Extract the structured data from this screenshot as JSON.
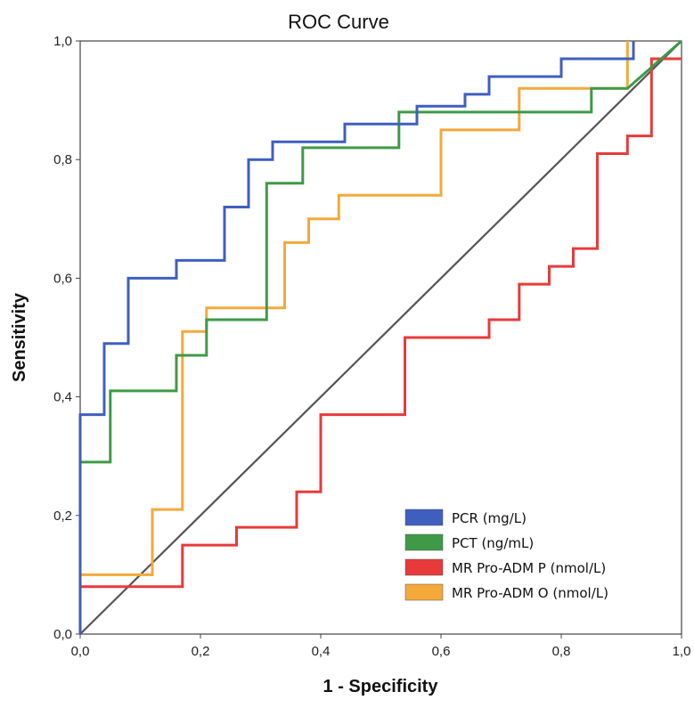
{
  "chart_data": {
    "type": "line",
    "title": "ROC Curve",
    "xlabel": "1 - Specificity",
    "ylabel": "Sensitivity",
    "xlim": [
      0,
      1
    ],
    "ylim": [
      0,
      1
    ],
    "xticks": [
      "0,0",
      "0,2",
      "0,4",
      "0,6",
      "0,8",
      "1,0"
    ],
    "yticks": [
      "0,0",
      "0,2",
      "0,4",
      "0,6",
      "0,8",
      "1,0"
    ],
    "grid": false,
    "legend_position": "bottom-right",
    "reference_line": {
      "from": [
        0,
        0
      ],
      "to": [
        1,
        1
      ],
      "color": "#555555"
    },
    "series": [
      {
        "name": "PCR (mg/L)",
        "color": "#3f5fbf",
        "x": [
          0,
          0,
          0.04,
          0.04,
          0.08,
          0.08,
          0.16,
          0.16,
          0.24,
          0.24,
          0.28,
          0.28,
          0.32,
          0.32,
          0.44,
          0.44,
          0.56,
          0.56,
          0.64,
          0.64,
          0.68,
          0.68,
          0.8,
          0.8,
          0.92,
          0.92,
          0.92
        ],
        "y": [
          0,
          0.37,
          0.37,
          0.49,
          0.49,
          0.6,
          0.6,
          0.63,
          0.63,
          0.72,
          0.72,
          0.8,
          0.8,
          0.83,
          0.83,
          0.86,
          0.86,
          0.89,
          0.89,
          0.91,
          0.91,
          0.94,
          0.94,
          0.97,
          0.97,
          0.99,
          1.0
        ]
      },
      {
        "name": "PCT (ng/mL)",
        "color": "#3e9a47",
        "x": [
          0,
          0,
          0.05,
          0.05,
          0.16,
          0.16,
          0.21,
          0.21,
          0.31,
          0.31,
          0.37,
          0.37,
          0.53,
          0.53,
          0.58,
          0.58,
          0.85,
          0.85,
          0.91,
          1.0
        ],
        "y": [
          0,
          0.29,
          0.29,
          0.41,
          0.41,
          0.47,
          0.47,
          0.53,
          0.53,
          0.76,
          0.76,
          0.82,
          0.82,
          0.88,
          0.88,
          0.88,
          0.88,
          0.92,
          0.92,
          1.0
        ]
      },
      {
        "name": "MR Pro-ADM P (nmol/L)",
        "color": "#e83a3a",
        "x": [
          0,
          0,
          0.17,
          0.17,
          0.26,
          0.26,
          0.36,
          0.36,
          0.4,
          0.4,
          0.54,
          0.54,
          0.68,
          0.68,
          0.73,
          0.73,
          0.78,
          0.78,
          0.82,
          0.82,
          0.86,
          0.86,
          0.91,
          0.91,
          0.95,
          0.95,
          1.0
        ],
        "y": [
          0,
          0.08,
          0.08,
          0.15,
          0.15,
          0.18,
          0.18,
          0.24,
          0.24,
          0.37,
          0.37,
          0.5,
          0.5,
          0.53,
          0.53,
          0.59,
          0.59,
          0.62,
          0.62,
          0.65,
          0.65,
          0.81,
          0.81,
          0.84,
          0.84,
          0.97,
          0.97
        ]
      },
      {
        "name": "MR Pro-ADM O (nmol/L)",
        "color": "#f4a93a",
        "x": [
          0,
          0,
          0.12,
          0.12,
          0.17,
          0.17,
          0.21,
          0.21,
          0.34,
          0.34,
          0.38,
          0.38,
          0.43,
          0.43,
          0.6,
          0.6,
          0.73,
          0.73,
          0.91,
          0.91,
          0.91
        ],
        "y": [
          0,
          0.1,
          0.1,
          0.21,
          0.21,
          0.51,
          0.51,
          0.55,
          0.55,
          0.66,
          0.66,
          0.7,
          0.7,
          0.74,
          0.74,
          0.85,
          0.85,
          0.92,
          0.92,
          0.99,
          1.0
        ]
      }
    ]
  }
}
